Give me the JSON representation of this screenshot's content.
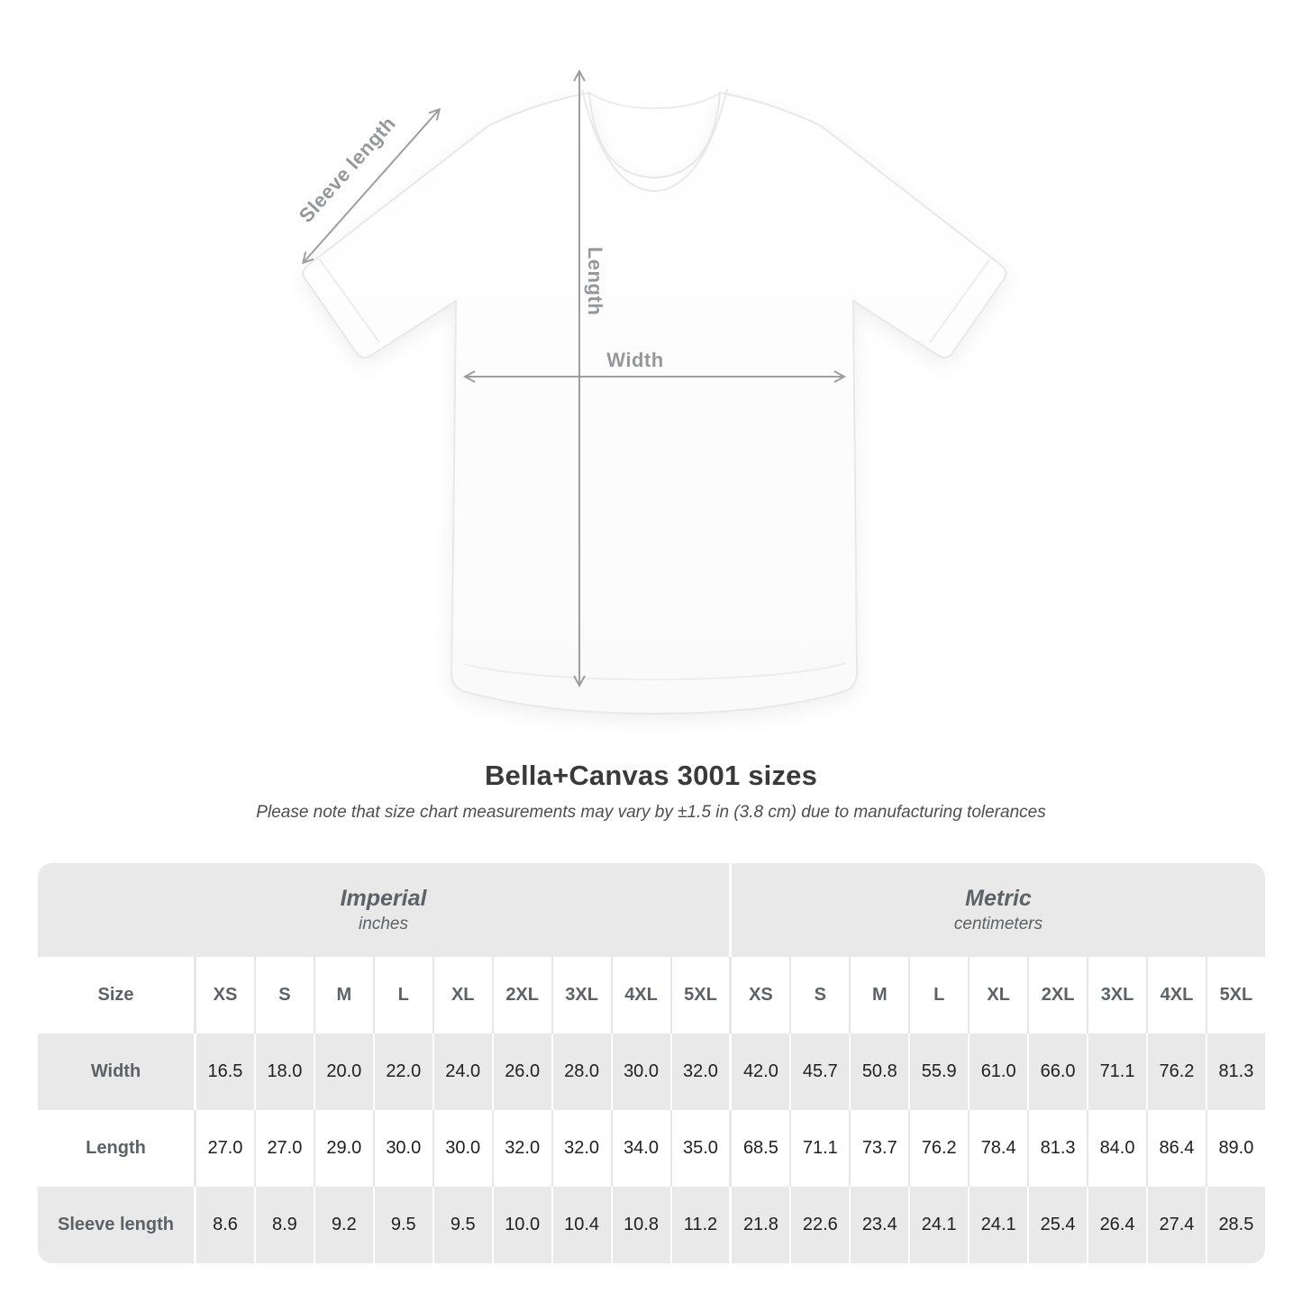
{
  "title": "Bella+Canvas 3001 sizes",
  "note": "Please note that size chart measurements may vary by ±1.5 in (3.8 cm) due to manufacturing tolerances",
  "diagram": {
    "labels": {
      "sleeve": "Sleeve length",
      "length": "Length",
      "width": "Width"
    },
    "arrow_color": "#9c9ea1",
    "label_color": "#95989b"
  },
  "table": {
    "corner_header": "Size",
    "unit_groups": [
      {
        "name": "Imperial",
        "unit": "inches"
      },
      {
        "name": "Metric",
        "unit": "centimeters"
      }
    ],
    "sizes": [
      "XS",
      "S",
      "M",
      "L",
      "XL",
      "2XL",
      "3XL",
      "4XL",
      "5XL"
    ],
    "rows": [
      {
        "label": "Width",
        "imperial": [
          "16.5",
          "18.0",
          "20.0",
          "22.0",
          "24.0",
          "26.0",
          "28.0",
          "30.0",
          "32.0"
        ],
        "metric": [
          "42.0",
          "45.7",
          "50.8",
          "55.9",
          "61.0",
          "66.0",
          "71.1",
          "76.2",
          "81.3"
        ]
      },
      {
        "label": "Length",
        "imperial": [
          "27.0",
          "27.0",
          "29.0",
          "30.0",
          "30.0",
          "32.0",
          "32.0",
          "34.0",
          "35.0"
        ],
        "metric": [
          "68.5",
          "71.1",
          "73.7",
          "76.2",
          "78.4",
          "81.3",
          "84.0",
          "86.4",
          "89.0"
        ]
      },
      {
        "label": "Sleeve length",
        "imperial": [
          "8.6",
          "8.9",
          "9.2",
          "9.5",
          "9.5",
          "10.0",
          "10.4",
          "10.8",
          "11.2"
        ],
        "metric": [
          "21.8",
          "22.6",
          "23.4",
          "24.1",
          "24.1",
          "25.4",
          "26.4",
          "27.4",
          "28.5"
        ]
      }
    ],
    "colors": {
      "band_bg": "#e9e9e9",
      "alt_row_bg": "#e9e9e9",
      "header_text": "#5c6267",
      "value_text": "#1f1f1f"
    }
  },
  "chart_data": {
    "type": "table",
    "title": "Bella+Canvas 3001 sizes",
    "note": "Please note that size chart measurements may vary by ±1.5 in (3.8 cm) due to manufacturing tolerances",
    "column_groups": [
      "Imperial (inches)",
      "Metric (centimeters)"
    ],
    "columns": [
      "Size",
      "XS",
      "S",
      "M",
      "L",
      "XL",
      "2XL",
      "3XL",
      "4XL",
      "5XL",
      "XS",
      "S",
      "M",
      "L",
      "XL",
      "2XL",
      "3XL",
      "4XL",
      "5XL"
    ],
    "rows": [
      [
        "Width",
        16.5,
        18.0,
        20.0,
        22.0,
        24.0,
        26.0,
        28.0,
        30.0,
        32.0,
        42.0,
        45.7,
        50.8,
        55.9,
        61.0,
        66.0,
        71.1,
        76.2,
        81.3
      ],
      [
        "Length",
        27.0,
        27.0,
        29.0,
        30.0,
        30.0,
        32.0,
        32.0,
        34.0,
        35.0,
        68.5,
        71.1,
        73.7,
        76.2,
        78.4,
        81.3,
        84.0,
        86.4,
        89.0
      ],
      [
        "Sleeve length",
        8.6,
        8.9,
        9.2,
        9.5,
        9.5,
        10.0,
        10.4,
        10.8,
        11.2,
        21.8,
        22.6,
        23.4,
        24.1,
        24.1,
        25.4,
        26.4,
        27.4,
        28.5
      ]
    ]
  }
}
